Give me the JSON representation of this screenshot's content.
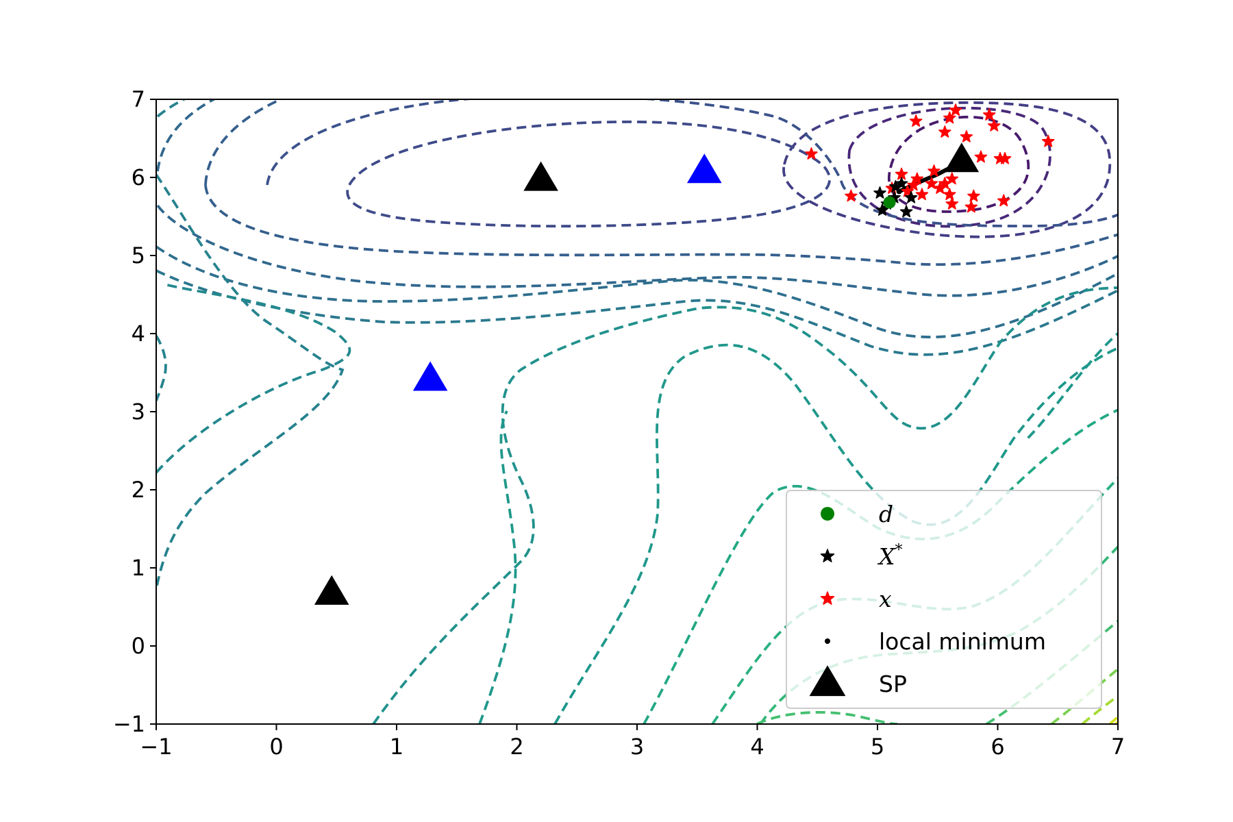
{
  "chart_data": {
    "type": "scatter",
    "title": "",
    "xlabel": "",
    "ylabel": "",
    "xlim": [
      -1,
      7
    ],
    "ylim": [
      -1,
      7
    ],
    "xticks": [
      "−1",
      "0",
      "1",
      "2",
      "3",
      "4",
      "5",
      "6",
      "7"
    ],
    "yticks": [
      "−1",
      "0",
      "1",
      "2",
      "3",
      "4",
      "5",
      "6",
      "7"
    ],
    "grid": false,
    "legend_position": "lower-right",
    "contour_style": "dashed, viridis colormap",
    "series": [
      {
        "name": "d",
        "marker": "circle",
        "color": "#008000",
        "points": [
          [
            5.1,
            5.68
          ]
        ]
      },
      {
        "name": "X^*",
        "marker": "star",
        "color": "#000000",
        "points": [
          [
            5.02,
            5.8
          ],
          [
            5.04,
            5.58
          ],
          [
            5.14,
            5.74
          ],
          [
            5.24,
            5.56
          ],
          [
            5.2,
            5.92
          ],
          [
            5.28,
            5.74
          ],
          [
            5.08,
            5.66
          ],
          [
            5.15,
            5.88
          ]
        ]
      },
      {
        "name": "x",
        "marker": "star",
        "color": "#ff0000",
        "points": [
          [
            4.45,
            6.3
          ],
          [
            4.78,
            5.76
          ],
          [
            5.12,
            5.86
          ],
          [
            5.2,
            6.04
          ],
          [
            5.3,
            5.9
          ],
          [
            5.33,
            5.98
          ],
          [
            5.37,
            5.78
          ],
          [
            5.47,
            6.08
          ],
          [
            5.52,
            5.86
          ],
          [
            5.56,
            5.92
          ],
          [
            5.6,
            5.78
          ],
          [
            5.62,
            5.66
          ],
          [
            5.32,
            6.72
          ],
          [
            5.56,
            6.58
          ],
          [
            5.6,
            6.76
          ],
          [
            5.65,
            6.86
          ],
          [
            5.74,
            6.52
          ],
          [
            5.86,
            6.26
          ],
          [
            5.93,
            6.8
          ],
          [
            5.97,
            6.66
          ],
          [
            6.02,
            6.24
          ],
          [
            6.06,
            6.24
          ],
          [
            6.05,
            5.7
          ],
          [
            5.8,
            5.76
          ],
          [
            5.78,
            5.62
          ],
          [
            5.62,
            5.98
          ],
          [
            5.45,
            5.92
          ],
          [
            6.42,
            6.46
          ],
          [
            5.25,
            5.82
          ]
        ]
      },
      {
        "name": "local minimum",
        "marker": "point",
        "color": "#000000",
        "points": [
          [
            5.18,
            5.82
          ]
        ]
      },
      {
        "name": "SP",
        "marker": "triangle",
        "color": "#000000",
        "points": [
          [
            5.7,
            6.22
          ],
          [
            2.2,
            5.98
          ],
          [
            0.46,
            0.68
          ]
        ]
      },
      {
        "name": "",
        "marker": "triangle",
        "color": "#0000ff",
        "points": [
          [
            3.56,
            6.08
          ],
          [
            1.28,
            3.42
          ]
        ]
      }
    ],
    "path": {
      "color": "#000000",
      "points": [
        [
          5.18,
          5.82
        ],
        [
          5.35,
          5.94
        ],
        [
          5.5,
          6.04
        ],
        [
          5.6,
          6.12
        ],
        [
          5.7,
          6.22
        ]
      ]
    },
    "legend": [
      {
        "label": "d",
        "math": true,
        "marker": "circle",
        "color": "#008000"
      },
      {
        "label": "X*",
        "math": true,
        "marker": "star",
        "color": "#000000"
      },
      {
        "label": "x",
        "math": true,
        "marker": "star",
        "color": "#ff0000"
      },
      {
        "label": "local minimum",
        "math": false,
        "marker": "point",
        "color": "#000000"
      },
      {
        "label": "SP",
        "math": false,
        "marker": "triangle",
        "color": "#000000"
      }
    ]
  }
}
